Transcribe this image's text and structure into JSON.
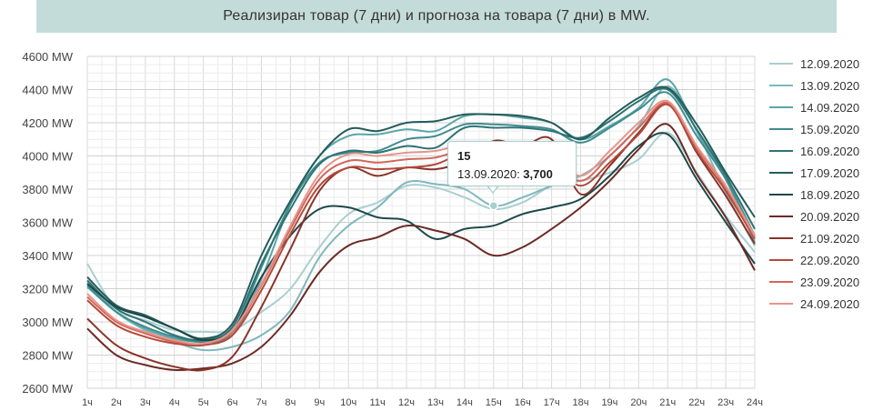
{
  "chart_data": {
    "type": "line",
    "title": "Реализиран товар (7 дни) и прогноза на товара (7 дни) в MW.",
    "x": [
      "1ч",
      "2ч",
      "3ч",
      "4ч",
      "5ч",
      "6ч",
      "7ч",
      "8ч",
      "9ч",
      "10ч",
      "11ч",
      "12ч",
      "13ч",
      "14ч",
      "15ч",
      "16ч",
      "17ч",
      "18ч",
      "19ч",
      "20ч",
      "21ч",
      "22ч",
      "23ч",
      "24ч"
    ],
    "yticks": [
      "2600 MW",
      "2800 MW",
      "3000 MW",
      "3200 MW",
      "3400 MW",
      "3600 MW",
      "3800 MW",
      "4000 MW",
      "4200 MW",
      "4400 MW",
      "4600 MW"
    ],
    "ylim": [
      2600,
      4600
    ],
    "grid": true,
    "legend_position": "right",
    "series": [
      {
        "name": "12.09.2020",
        "color": "#a9cfd0",
        "values": [
          3350,
          3080,
          3010,
          2950,
          2940,
          2950,
          3060,
          3200,
          3450,
          3650,
          3720,
          3820,
          3810,
          3750,
          3680,
          3720,
          3820,
          3850,
          3900,
          3980,
          4140,
          3900,
          3640,
          3420
        ]
      },
      {
        "name": "13.09.2020",
        "color": "#7fb8bd",
        "values": [
          3240,
          3060,
          2950,
          2880,
          2830,
          2850,
          2920,
          3070,
          3390,
          3580,
          3690,
          3840,
          3830,
          3800,
          3700,
          3750,
          3820,
          3880,
          4000,
          4180,
          4420,
          4150,
          3780,
          3460
        ]
      },
      {
        "name": "14.09.2020",
        "color": "#5aa5a8",
        "values": [
          3210,
          3060,
          2960,
          2900,
          2880,
          2920,
          3260,
          3710,
          4000,
          4120,
          4130,
          4160,
          4150,
          4240,
          4250,
          4230,
          4200,
          4100,
          4180,
          4290,
          4460,
          4150,
          3860,
          3480
        ]
      },
      {
        "name": "15.09.2020",
        "color": "#3f8c8e",
        "values": [
          3220,
          3060,
          2970,
          2910,
          2880,
          2940,
          3330,
          3710,
          3960,
          4020,
          4030,
          4100,
          4120,
          4190,
          4190,
          4180,
          4160,
          4080,
          4170,
          4280,
          4380,
          4120,
          3860,
          3520
        ]
      },
      {
        "name": "16.09.2020",
        "color": "#2e7374",
        "values": [
          3250,
          3080,
          3000,
          2920,
          2890,
          2970,
          3350,
          3680,
          3950,
          4030,
          4020,
          4060,
          4050,
          4170,
          4170,
          4170,
          4150,
          4110,
          4210,
          4330,
          4400,
          4160,
          3880,
          3560
        ]
      },
      {
        "name": "17.09.2020",
        "color": "#245c5a",
        "values": [
          3270,
          3100,
          3040,
          2960,
          2900,
          2990,
          3400,
          3730,
          4000,
          4160,
          4150,
          4200,
          4210,
          4250,
          4250,
          4240,
          4200,
          4100,
          4230,
          4350,
          4410,
          4190,
          3900,
          3630
        ]
      },
      {
        "name": "18.09.2020",
        "color": "#1e4848",
        "values": [
          3230,
          3090,
          3030,
          2960,
          2890,
          2950,
          3270,
          3520,
          3680,
          3690,
          3630,
          3610,
          3500,
          3560,
          3580,
          3650,
          3690,
          3740,
          3880,
          4060,
          4130,
          3860,
          3600,
          3350
        ]
      },
      {
        "name": "20.09.2020",
        "color": "#6b2a25",
        "values": [
          2960,
          2800,
          2740,
          2710,
          2720,
          2750,
          2850,
          3040,
          3300,
          3460,
          3510,
          3580,
          3550,
          3500,
          3400,
          3450,
          3560,
          3690,
          3850,
          4040,
          4190,
          3890,
          3630,
          3310
        ]
      },
      {
        "name": "21.09.2020",
        "color": "#8a3329",
        "values": [
          3020,
          2860,
          2780,
          2730,
          2710,
          2790,
          3090,
          3440,
          3790,
          3930,
          3880,
          3930,
          3920,
          3970,
          4090,
          4060,
          4100,
          3770,
          3940,
          4140,
          4310,
          4020,
          3760,
          3470
        ]
      },
      {
        "name": "22.09.2020",
        "color": "#b34a3b",
        "values": [
          3130,
          2980,
          2910,
          2870,
          2860,
          2920,
          3190,
          3530,
          3820,
          3930,
          3920,
          3930,
          3950,
          4020,
          4020,
          3990,
          3960,
          3820,
          3960,
          4130,
          4310,
          4030,
          3790,
          3500
        ]
      },
      {
        "name": "23.09.2020",
        "color": "#d4665a",
        "values": [
          3150,
          3000,
          2930,
          2880,
          2870,
          2940,
          3220,
          3560,
          3860,
          3970,
          3960,
          3980,
          3990,
          4040,
          4040,
          4010,
          3980,
          3850,
          4000,
          4170,
          4320,
          4050,
          3810,
          3510
        ]
      },
      {
        "name": "24.09.2020",
        "color": "#e6958b",
        "values": [
          3170,
          3010,
          2940,
          2890,
          2870,
          2950,
          3230,
          3580,
          3890,
          4010,
          4000,
          4020,
          4030,
          4070,
          4070,
          4040,
          4010,
          3880,
          4030,
          4200,
          4330,
          4060,
          3820,
          3520
        ]
      }
    ]
  },
  "tooltip": {
    "title": "15",
    "label": "13.09.2020: ",
    "value": "3,700"
  }
}
